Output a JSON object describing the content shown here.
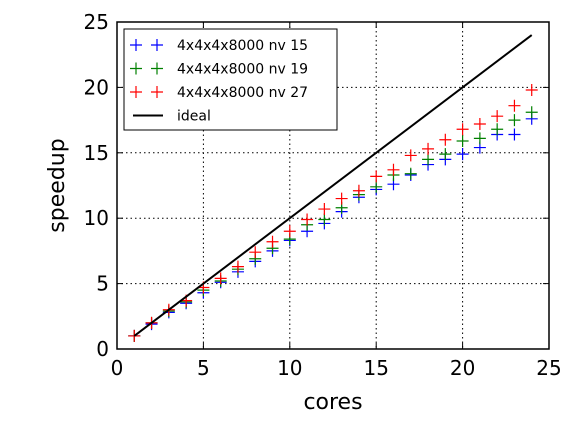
{
  "chart_data": {
    "type": "scatter",
    "xlabel": "cores",
    "ylabel": "speedup",
    "xlim": [
      0,
      25
    ],
    "ylim": [
      0,
      25
    ],
    "xticks": [
      "0",
      "5",
      "10",
      "15",
      "20",
      "25"
    ],
    "yticks": [
      "0",
      "5",
      "10",
      "15",
      "20",
      "25"
    ],
    "grid": true,
    "legend_position": "top-left",
    "series": [
      {
        "name": "4x4x4x8000 nv 15",
        "color": "#0000ff",
        "marker": "plus",
        "x": [
          1,
          2,
          3,
          4,
          5,
          6,
          7,
          8,
          9,
          10,
          11,
          12,
          13,
          14,
          15,
          16,
          17,
          18,
          19,
          20,
          21,
          22,
          23,
          24
        ],
        "y": [
          1.0,
          1.9,
          2.8,
          3.5,
          4.3,
          5.1,
          5.9,
          6.7,
          7.5,
          8.3,
          9.0,
          9.6,
          10.5,
          11.6,
          12.2,
          12.6,
          13.3,
          14.1,
          14.5,
          14.9,
          15.4,
          16.4,
          16.4,
          17.6
        ]
      },
      {
        "name": "4x4x4x8000 nv 19",
        "color": "#008000",
        "marker": "plus",
        "x": [
          1,
          2,
          3,
          4,
          5,
          6,
          7,
          8,
          9,
          10,
          11,
          12,
          13,
          14,
          15,
          16,
          17,
          18,
          19,
          20,
          21,
          22,
          23,
          24
        ],
        "y": [
          1.0,
          2.0,
          2.9,
          3.6,
          4.5,
          5.2,
          6.1,
          6.9,
          7.7,
          8.4,
          9.5,
          9.9,
          10.8,
          11.8,
          12.4,
          13.3,
          13.4,
          14.5,
          14.9,
          15.9,
          16.1,
          16.8,
          17.5,
          18.1
        ]
      },
      {
        "name": "4x4x4x8000 nv 27",
        "color": "#ff0000",
        "marker": "plus",
        "x": [
          1,
          2,
          3,
          4,
          5,
          6,
          7,
          8,
          9,
          10,
          11,
          12,
          13,
          14,
          15,
          16,
          17,
          18,
          19,
          20,
          21,
          22,
          23,
          24
        ],
        "y": [
          1.0,
          2.0,
          3.0,
          3.7,
          4.7,
          5.4,
          6.3,
          7.4,
          8.2,
          9.0,
          9.9,
          10.7,
          11.5,
          12.1,
          13.2,
          13.7,
          14.8,
          15.3,
          16.0,
          16.8,
          17.2,
          17.8,
          18.6,
          19.8
        ]
      },
      {
        "name": "ideal",
        "color": "#000000",
        "marker": "line",
        "x": [
          1,
          24
        ],
        "y": [
          1,
          24
        ]
      }
    ]
  }
}
